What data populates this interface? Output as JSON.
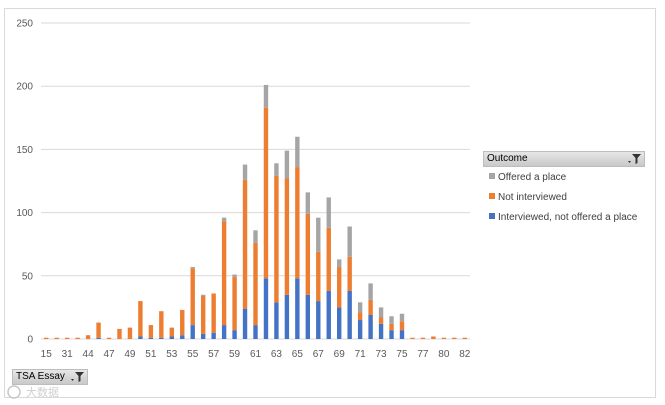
{
  "chart_data": {
    "type": "bar",
    "stacked": true,
    "grid": "horizontal",
    "legend_position": "right",
    "ylim": [
      0,
      250
    ],
    "yticks": [
      0,
      50,
      100,
      150,
      200,
      250
    ],
    "tick_every": 2,
    "categories": [
      "15",
      "30",
      "31",
      "39",
      "44",
      "45",
      "47",
      "48",
      "49",
      "50",
      "51",
      "52",
      "53",
      "54",
      "55",
      "56",
      "57",
      "58",
      "59",
      "60",
      "61",
      "62",
      "63",
      "64",
      "65",
      "66",
      "67",
      "68",
      "69",
      "70",
      "71",
      "72",
      "73",
      "74",
      "75",
      "76",
      "77",
      "79",
      "80",
      "81",
      "82"
    ],
    "series": [
      {
        "name": "Interviewed, not offered a place",
        "color": "#4472c4",
        "values": [
          0,
          0,
          0,
          0,
          0,
          1,
          0,
          0,
          0,
          2,
          1,
          1,
          2,
          3,
          11,
          4,
          5,
          11,
          7,
          24,
          11,
          48,
          29,
          35,
          48,
          35,
          30,
          38,
          25,
          38,
          15,
          19,
          12,
          7,
          7,
          0,
          0,
          0,
          0,
          0,
          0
        ]
      },
      {
        "name": "Not interviewed",
        "color": "#ed7d31",
        "values": [
          1,
          1,
          1,
          1,
          3,
          12,
          1,
          8,
          9,
          28,
          10,
          21,
          7,
          20,
          45,
          30,
          31,
          82,
          42,
          102,
          65,
          135,
          100,
          92,
          88,
          64,
          39,
          50,
          32,
          27,
          6,
          12,
          5,
          5,
          7,
          1,
          1,
          2,
          1,
          1,
          1
        ]
      },
      {
        "name": "Offered a place",
        "color": "#a5a5a5",
        "values": [
          0,
          0,
          0,
          0,
          0,
          0,
          0,
          0,
          0,
          0,
          0,
          0,
          0,
          0,
          1,
          1,
          0,
          3,
          2,
          12,
          10,
          18,
          10,
          22,
          24,
          17,
          27,
          24,
          6,
          24,
          8,
          13,
          8,
          6,
          6,
          0,
          0,
          0,
          0,
          0,
          0
        ]
      }
    ]
  },
  "legend": {
    "title": "Outcome",
    "filter_icon": "filter-dropdown-icon",
    "items": [
      {
        "label": "Offered a place",
        "color": "#a5a5a5"
      },
      {
        "label": "Not interviewed",
        "color": "#ed7d31"
      },
      {
        "label": "Interviewed, not offered a place",
        "color": "#4472c4"
      }
    ]
  },
  "field_button": {
    "label": "TSA Essay",
    "icon": "filter-dropdown-icon"
  },
  "watermark": {
    "text": "大数据"
  }
}
